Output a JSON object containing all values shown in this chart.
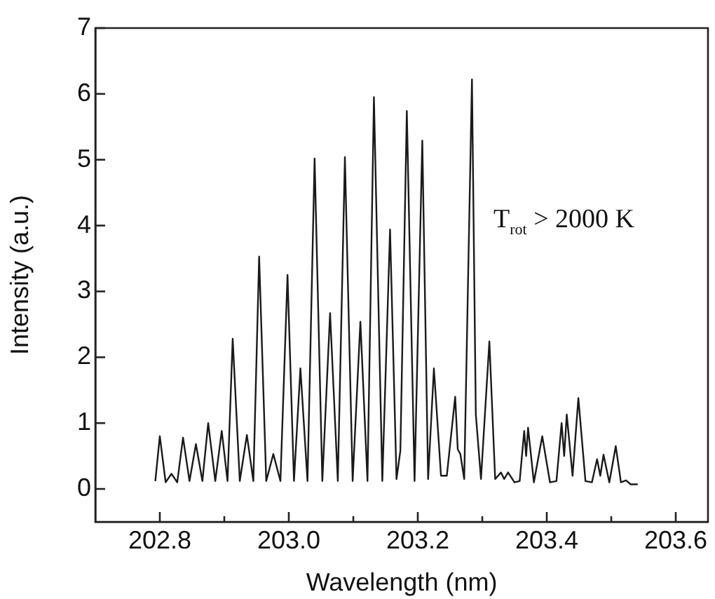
{
  "chart_data": {
    "type": "line",
    "xlabel": "Wavelength (nm)",
    "ylabel": "Intensity (a.u.)",
    "annotations": [
      "T$_{rot}$ > 2000 K"
    ],
    "xlim": [
      202.7,
      203.65
    ],
    "ylim": [
      -0.5,
      7
    ],
    "xticks": [
      202.8,
      {
        "value": 202.9,
        "label": null
      },
      "203.0",
      {
        "value": 203.1,
        "label": null
      },
      203.2,
      {
        "value": 203.3,
        "label": null
      },
      203.4,
      {
        "value": 203.5,
        "label": null
      },
      203.6
    ],
    "yticks": [
      0,
      1,
      2,
      3,
      4,
      5,
      6,
      7
    ],
    "grid": false,
    "legend": false,
    "marker": "none",
    "line_style": "solid",
    "series": [
      {
        "color": "#1a1a1a",
        "x": [
          202.793,
          202.8,
          202.809,
          202.818,
          202.827,
          202.836,
          202.846,
          202.856,
          202.866,
          202.875,
          202.886,
          202.896,
          202.905,
          202.913,
          202.924,
          202.935,
          202.945,
          202.954,
          202.965,
          202.976,
          202.987,
          202.998,
          203.008,
          203.018,
          203.029,
          203.04,
          203.052,
          203.064,
          203.076,
          203.087,
          203.099,
          203.111,
          203.122,
          203.132,
          203.145,
          203.157,
          203.167,
          203.173,
          203.183,
          203.195,
          203.207,
          203.216,
          203.225,
          203.236,
          203.245,
          203.258,
          203.262,
          203.266,
          203.272,
          203.284,
          203.29,
          203.298,
          203.311,
          203.32,
          203.329,
          203.334,
          203.34,
          203.35,
          203.358,
          203.365,
          203.368,
          203.371,
          203.38,
          203.393,
          203.405,
          203.415,
          203.423,
          203.427,
          203.431,
          203.44,
          203.449,
          203.46,
          203.47,
          203.478,
          203.483,
          203.488,
          203.497,
          203.507,
          203.515,
          203.523,
          203.53,
          203.541
        ],
        "values": [
          0.12,
          0.8,
          0.1,
          0.23,
          0.1,
          0.78,
          0.12,
          0.68,
          0.12,
          1.0,
          0.12,
          0.88,
          0.12,
          2.28,
          0.12,
          0.82,
          0.12,
          3.53,
          0.12,
          0.53,
          0.12,
          3.25,
          0.12,
          1.83,
          0.12,
          5.02,
          0.12,
          2.67,
          0.12,
          5.04,
          0.12,
          2.54,
          0.12,
          5.95,
          0.12,
          3.94,
          0.15,
          0.58,
          5.74,
          0.12,
          5.29,
          0.15,
          1.83,
          0.2,
          0.2,
          1.4,
          0.6,
          0.53,
          0.15,
          6.22,
          1.13,
          0.15,
          2.24,
          0.15,
          0.25,
          0.15,
          0.25,
          0.1,
          0.12,
          0.88,
          0.5,
          0.93,
          0.1,
          0.8,
          0.1,
          0.12,
          1.0,
          0.5,
          1.13,
          0.2,
          1.38,
          0.12,
          0.1,
          0.45,
          0.2,
          0.52,
          0.1,
          0.65,
          0.1,
          0.13,
          0.07,
          0.07
        ]
      }
    ]
  }
}
